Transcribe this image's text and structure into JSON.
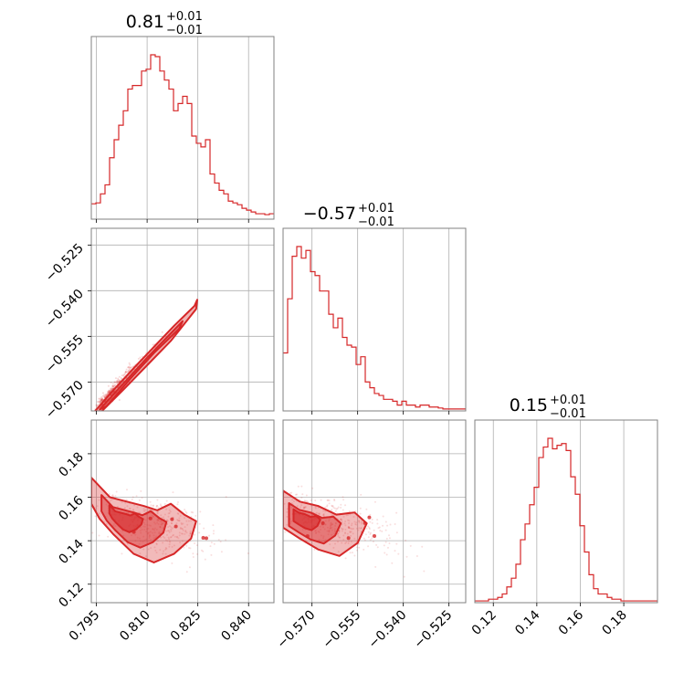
{
  "chart_data": {
    "type": "corner",
    "color": "#d62728",
    "parameters": [
      {
        "title": {
          "value": "0.81",
          "plus": "+0.01",
          "minus": "−0.01"
        },
        "range": [
          0.7935,
          0.8475
        ],
        "ticks": [
          0.795,
          0.81,
          0.825,
          0.84
        ],
        "tick_labels": [
          "0.795",
          "0.810",
          "0.825",
          "0.840"
        ],
        "hist": {
          "edges_start": 0.7935,
          "bin_width": 0.00135,
          "counts": [
            0.085,
            0.09,
            0.14,
            0.19,
            0.34,
            0.44,
            0.52,
            0.6,
            0.72,
            0.74,
            0.74,
            0.82,
            0.83,
            0.91,
            0.9,
            0.82,
            0.77,
            0.72,
            0.6,
            0.64,
            0.68,
            0.64,
            0.46,
            0.42,
            0.4,
            0.44,
            0.25,
            0.2,
            0.16,
            0.14,
            0.1,
            0.09,
            0.08,
            0.06,
            0.05,
            0.04,
            0.03,
            0.03,
            0.025,
            0.03
          ]
        }
      },
      {
        "title": {
          "value": "−0.57",
          "plus": "+0.01",
          "minus": "−0.01"
        },
        "range": [
          -0.5795,
          -0.5195
        ],
        "ticks": [
          -0.57,
          -0.555,
          -0.54,
          -0.525
        ],
        "tick_labels": [
          "−0.570",
          "−0.555",
          "−0.540",
          "−0.525"
        ],
        "hist": {
          "edges_start": -0.5795,
          "bin_width": 0.0015,
          "counts": [
            0.3,
            0.58,
            0.8,
            0.85,
            0.79,
            0.83,
            0.72,
            0.7,
            0.62,
            0.62,
            0.5,
            0.43,
            0.48,
            0.38,
            0.34,
            0.33,
            0.24,
            0.28,
            0.15,
            0.12,
            0.09,
            0.08,
            0.06,
            0.06,
            0.05,
            0.03,
            0.05,
            0.03,
            0.03,
            0.02,
            0.03,
            0.03,
            0.02,
            0.02,
            0.015,
            0.01,
            0.01,
            0.01,
            0.01,
            0.01
          ]
        }
      },
      {
        "title": {
          "value": "0.15",
          "plus": "+0.01",
          "minus": "−0.01"
        },
        "range": [
          0.1115,
          0.1955
        ],
        "ticks": [
          0.12,
          0.14,
          0.16,
          0.18
        ],
        "tick_labels": [
          "0.12",
          "0.14",
          "0.16",
          "0.18"
        ],
        "hist": {
          "edges_start": 0.1115,
          "bin_width": 0.0021,
          "counts": [
            0.01,
            0.01,
            0.01,
            0.02,
            0.02,
            0.03,
            0.05,
            0.09,
            0.14,
            0.22,
            0.36,
            0.45,
            0.56,
            0.66,
            0.83,
            0.89,
            0.94,
            0.88,
            0.9,
            0.91,
            0.87,
            0.72,
            0.62,
            0.44,
            0.29,
            0.16,
            0.08,
            0.05,
            0.05,
            0.03,
            0.02,
            0.02,
            0.01,
            0.01,
            0.01,
            0.01,
            0.01,
            0.01,
            0.01,
            0.01
          ]
        }
      }
    ],
    "pairs": [
      {
        "row": 1,
        "col": 0,
        "relation": "strong positive linear correlation",
        "center": [
          0.8102,
          -0.5605
        ],
        "slope": 0.89,
        "scatter_width": 0.0012
      },
      {
        "row": 2,
        "col": 0,
        "relation": "negative correlation",
        "center": [
          0.8085,
          0.148
        ],
        "slope": -0.8,
        "scatter_width": 0.009
      },
      {
        "row": 2,
        "col": 1,
        "relation": "negative correlation",
        "center": [
          -0.5665,
          0.148
        ],
        "slope": -0.75,
        "scatter_width": 0.009
      }
    ]
  }
}
